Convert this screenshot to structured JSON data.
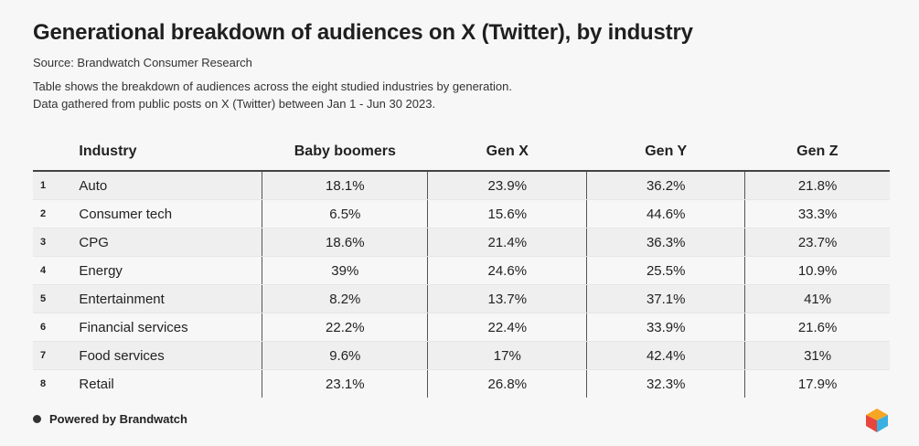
{
  "title": "Generational breakdown of audiences on X (Twitter), by industry",
  "source": "Source: Brandwatch Consumer Research",
  "description": [
    "Table shows the breakdown of audiences across the eight studied industries by generation.",
    "Data gathered from public posts on X (Twitter) between Jan 1 - Jun 30 2023."
  ],
  "footer": "Powered by Brandwatch",
  "colors": {
    "background": "#f7f7f7",
    "stripe": "#efefef",
    "logo": [
      "#f6a623",
      "#e8453c",
      "#3ab0e2",
      "#5cb85c"
    ]
  },
  "chart_data": {
    "type": "table",
    "columns": [
      "Industry",
      "Baby boomers",
      "Gen X",
      "Gen Y",
      "Gen Z"
    ],
    "rows": [
      {
        "n": "1",
        "industry": "Auto",
        "values": [
          "18.1%",
          "23.9%",
          "36.2%",
          "21.8%"
        ]
      },
      {
        "n": "2",
        "industry": "Consumer tech",
        "values": [
          "6.5%",
          "15.6%",
          "44.6%",
          "33.3%"
        ]
      },
      {
        "n": "3",
        "industry": "CPG",
        "values": [
          "18.6%",
          "21.4%",
          "36.3%",
          "23.7%"
        ]
      },
      {
        "n": "4",
        "industry": "Energy",
        "values": [
          "39%",
          "24.6%",
          "25.5%",
          "10.9%"
        ]
      },
      {
        "n": "5",
        "industry": "Entertainment",
        "values": [
          "8.2%",
          "13.7%",
          "37.1%",
          "41%"
        ]
      },
      {
        "n": "6",
        "industry": "Financial services",
        "values": [
          "22.2%",
          "22.4%",
          "33.9%",
          "21.6%"
        ]
      },
      {
        "n": "7",
        "industry": "Food services",
        "values": [
          "9.6%",
          "17%",
          "42.4%",
          "31%"
        ]
      },
      {
        "n": "8",
        "industry": "Retail",
        "values": [
          "23.1%",
          "26.8%",
          "32.3%",
          "17.9%"
        ]
      }
    ]
  }
}
